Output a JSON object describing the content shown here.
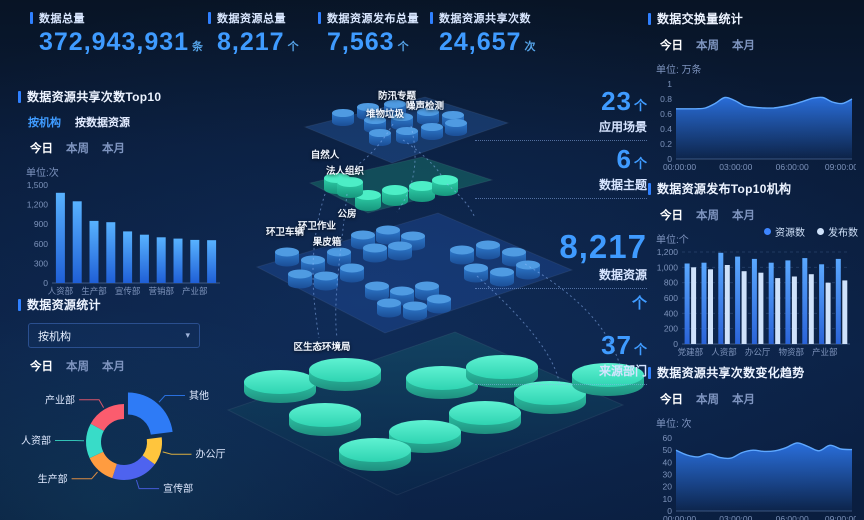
{
  "kpis": [
    {
      "title": "数据总量",
      "value": "372,943,931",
      "unit": "条"
    },
    {
      "title": "数据资源总量",
      "value": "8,217",
      "unit": "个"
    },
    {
      "title": "数据资源发布总量",
      "value": "7,563",
      "unit": "个"
    },
    {
      "title": "数据资源共享次数",
      "value": "24,657",
      "unit": "次"
    }
  ],
  "filters": {
    "today": "今日",
    "week": "本周",
    "month": "本月"
  },
  "panels": {
    "share_top10": {
      "tabs": [
        "按机构",
        "按数据资源"
      ]
    },
    "resource_stats": {
      "dropdown_value": "按机构"
    }
  },
  "center": {
    "labels": {
      "app1": "防汛专题",
      "app2": "噪声检测",
      "app3": "堆物垃圾",
      "theme1": "自然人",
      "theme2": "法人组织",
      "res1": "公房",
      "res2": "环卫作业",
      "res3": "环卫车辆",
      "res4": "果皮箱",
      "dept1": "区生态环境局"
    },
    "stats": [
      {
        "value": "23",
        "unit": "个",
        "label": "应用场景"
      },
      {
        "value": "6",
        "unit": "个",
        "label": "数据主题"
      },
      {
        "value": "8,217",
        "unit": "个",
        "label": "数据资源"
      },
      {
        "value": "37",
        "unit": "个",
        "label": "来源部门"
      }
    ]
  },
  "colors": {
    "accent": "#2f80ff",
    "number_blue": "#3f9bff",
    "bar_top": "#58b2ff",
    "bar_bottom": "#1f5fd6",
    "resource_series": "#3e86ff",
    "publish_series": "#cfe2fb",
    "area_blue": "#2f7cf6",
    "area_stroke": "#5fa8ff"
  },
  "chart_data": [
    {
      "id": "share_top10",
      "type": "bar",
      "title": "数据资源共享次数Top10",
      "unit": "单位:次",
      "categories": [
        "人资部",
        "",
        "生产部",
        "",
        "宣传部",
        "",
        "营销部",
        "",
        "产业部",
        ""
      ],
      "values": [
        1380,
        1250,
        950,
        930,
        790,
        740,
        700,
        680,
        660,
        655
      ],
      "ylim": [
        0,
        1500
      ],
      "yticks": [
        "0",
        "300",
        "600",
        "900",
        "1,200",
        "1,500"
      ]
    },
    {
      "id": "exchange",
      "type": "area",
      "title": "数据交换量统计",
      "unit": "单位: 万条",
      "x": [
        "00:00:00",
        "03:00:00",
        "06:00:00",
        "09:00:00"
      ],
      "values": [
        0.67,
        0.67,
        0.67,
        0.68,
        0.74,
        0.82,
        0.78,
        0.71,
        0.69,
        0.68,
        0.68,
        0.7,
        0.73,
        0.77,
        0.81,
        0.82,
        0.76,
        0.74,
        0.8
      ],
      "ylim": [
        0,
        1
      ],
      "yticks": [
        "0",
        "0.2",
        "0.4",
        "0.6",
        "0.8",
        "1"
      ]
    },
    {
      "id": "publish_top10",
      "type": "bar",
      "title": "数据资源发布Top10机构",
      "unit": "单位:个",
      "categories": [
        "党建部",
        "",
        "人资部",
        "",
        "办公厅",
        "",
        "物资部",
        "",
        "产业部",
        ""
      ],
      "series": [
        {
          "name": "资源数",
          "values": [
            1050,
            1060,
            1190,
            1140,
            1110,
            1060,
            1090,
            1120,
            1040,
            1110
          ]
        },
        {
          "name": "发布数",
          "values": [
            1000,
            975,
            1030,
            950,
            930,
            860,
            880,
            910,
            800,
            830
          ]
        }
      ],
      "ylim": [
        0,
        1200
      ],
      "yticks": [
        "0",
        "200",
        "400",
        "600",
        "800",
        "1,000",
        "1,200"
      ]
    },
    {
      "id": "share_trend",
      "type": "area",
      "title": "数据资源共享次数变化趋势",
      "unit": "单位: 次",
      "x": [
        "00:00:00",
        "03:00:00",
        "06:00:00",
        "09:00:00"
      ],
      "values": [
        50,
        46,
        44.5,
        47,
        44,
        43.5,
        48,
        50,
        49,
        49.5,
        52,
        56,
        53,
        49.5,
        54,
        51,
        50.5
      ],
      "ylim": [
        0,
        60
      ],
      "yticks": [
        "0",
        "10",
        "20",
        "30",
        "40",
        "50",
        "60"
      ]
    },
    {
      "id": "resource_stats",
      "type": "pie",
      "title": "数据资源统计",
      "slices": [
        {
          "label": "其他",
          "value": 23,
          "color": "#2e7bf6",
          "exploded": true
        },
        {
          "label": "办公厅",
          "value": 12,
          "color": "#ffc53d"
        },
        {
          "label": "宣传部",
          "value": 20,
          "color": "#4e63ef"
        },
        {
          "label": "生产部",
          "value": 13,
          "color": "#ff9c40"
        },
        {
          "label": "人资部",
          "value": 15,
          "color": "#38dcc8"
        },
        {
          "label": "产业部",
          "value": 17,
          "color": "#fb5c6e"
        }
      ]
    }
  ]
}
